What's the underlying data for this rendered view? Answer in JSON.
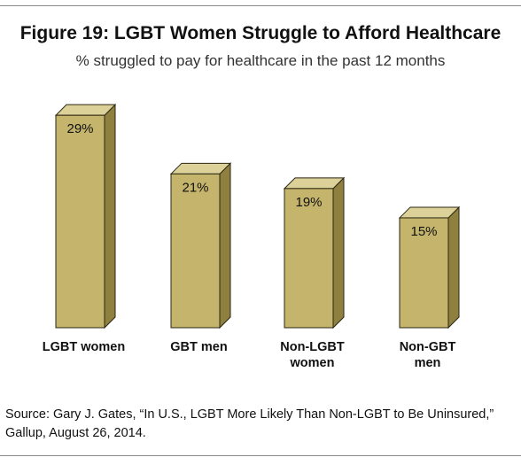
{
  "chart_data": {
    "type": "bar",
    "title": "Figure 19: LGBT Women Struggle to Afford Healthcare",
    "subtitle": "% struggled to pay for healthcare in the past 12 months",
    "categories": [
      "LGBT women",
      "GBT men",
      "Non-LGBT women",
      "Non-GBT men"
    ],
    "category_lines": [
      [
        "LGBT women"
      ],
      [
        "GBT men"
      ],
      [
        "Non-LGBT",
        "women"
      ],
      [
        "Non-GBT",
        "men"
      ]
    ],
    "values": [
      29,
      21,
      19,
      15
    ],
    "data_labels": [
      "29%",
      "21%",
      "19%",
      "15%"
    ],
    "ylim": [
      0,
      30
    ],
    "grid": false,
    "legend": "none",
    "style": "3d-bar",
    "colors": {
      "bar_front": "#c4b46c",
      "bar_side": "#8f8040",
      "bar_top": "#ddd19a",
      "bar_edge": "#2b2612"
    }
  },
  "source": "Source: Gary J. Gates, “In U.S., LGBT More Likely Than Non-LGBT to Be Uninsured,” Gallup, August 26, 2014."
}
